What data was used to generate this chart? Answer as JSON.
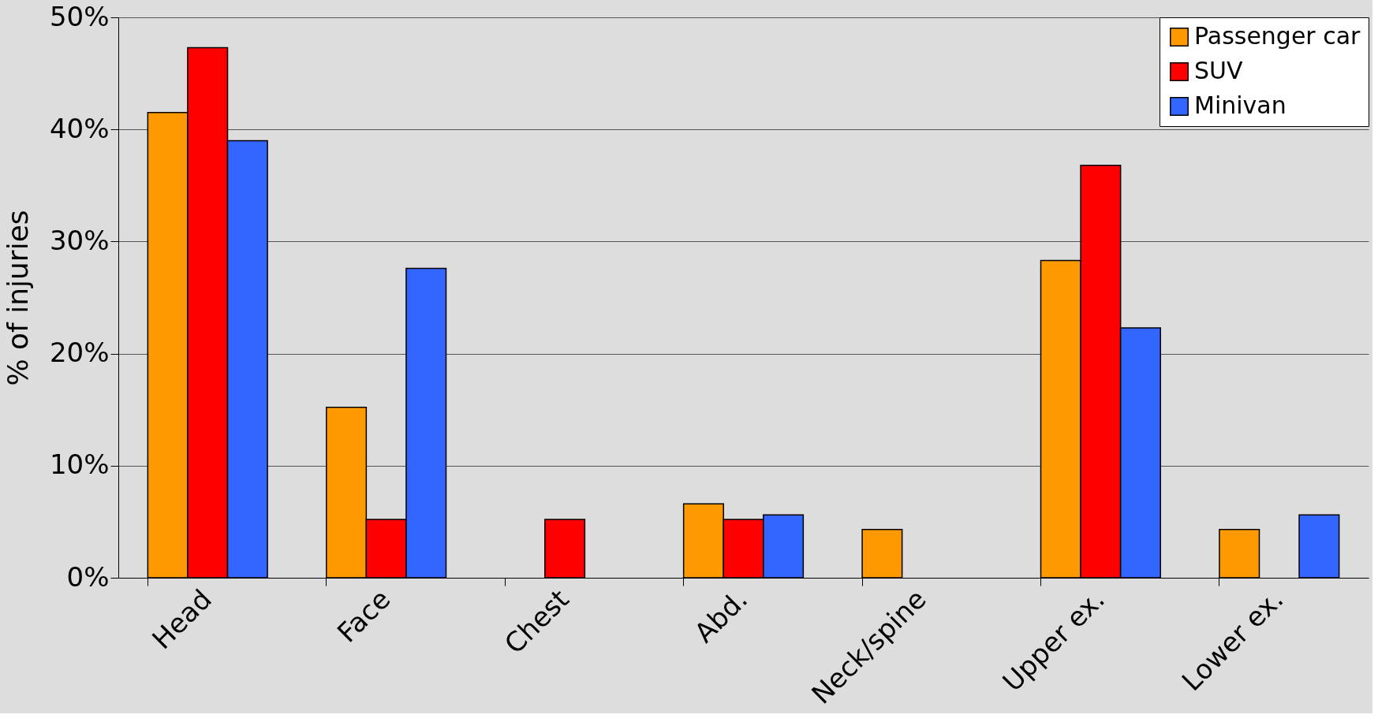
{
  "chart_data": {
    "type": "bar",
    "ylabel": "% of injuries",
    "categories": [
      "Head",
      "Face",
      "Chest",
      "Abd.",
      "Neck/spine",
      "Upper ex.",
      "Lower ex."
    ],
    "series": [
      {
        "name": "Passenger car",
        "color": "#ff9900",
        "values": [
          41.5,
          15.2,
          null,
          6.6,
          4.3,
          28.3,
          4.3
        ]
      },
      {
        "name": "SUV",
        "color": "#ff0000",
        "values": [
          47.3,
          5.2,
          5.2,
          5.2,
          null,
          36.8,
          null
        ]
      },
      {
        "name": "Minivan",
        "color": "#3366ff",
        "values": [
          39.0,
          27.6,
          null,
          5.6,
          null,
          22.3,
          5.6
        ]
      }
    ],
    "ylim": [
      0,
      50
    ],
    "yticks": [
      {
        "value": 0,
        "label": "0%"
      },
      {
        "value": 10,
        "label": "10%"
      },
      {
        "value": 20,
        "label": "20%"
      },
      {
        "value": 30,
        "label": "30%"
      },
      {
        "value": 40,
        "label": "40%"
      },
      {
        "value": 50,
        "label": "50%"
      }
    ],
    "grid": "y",
    "legend": "top right"
  }
}
